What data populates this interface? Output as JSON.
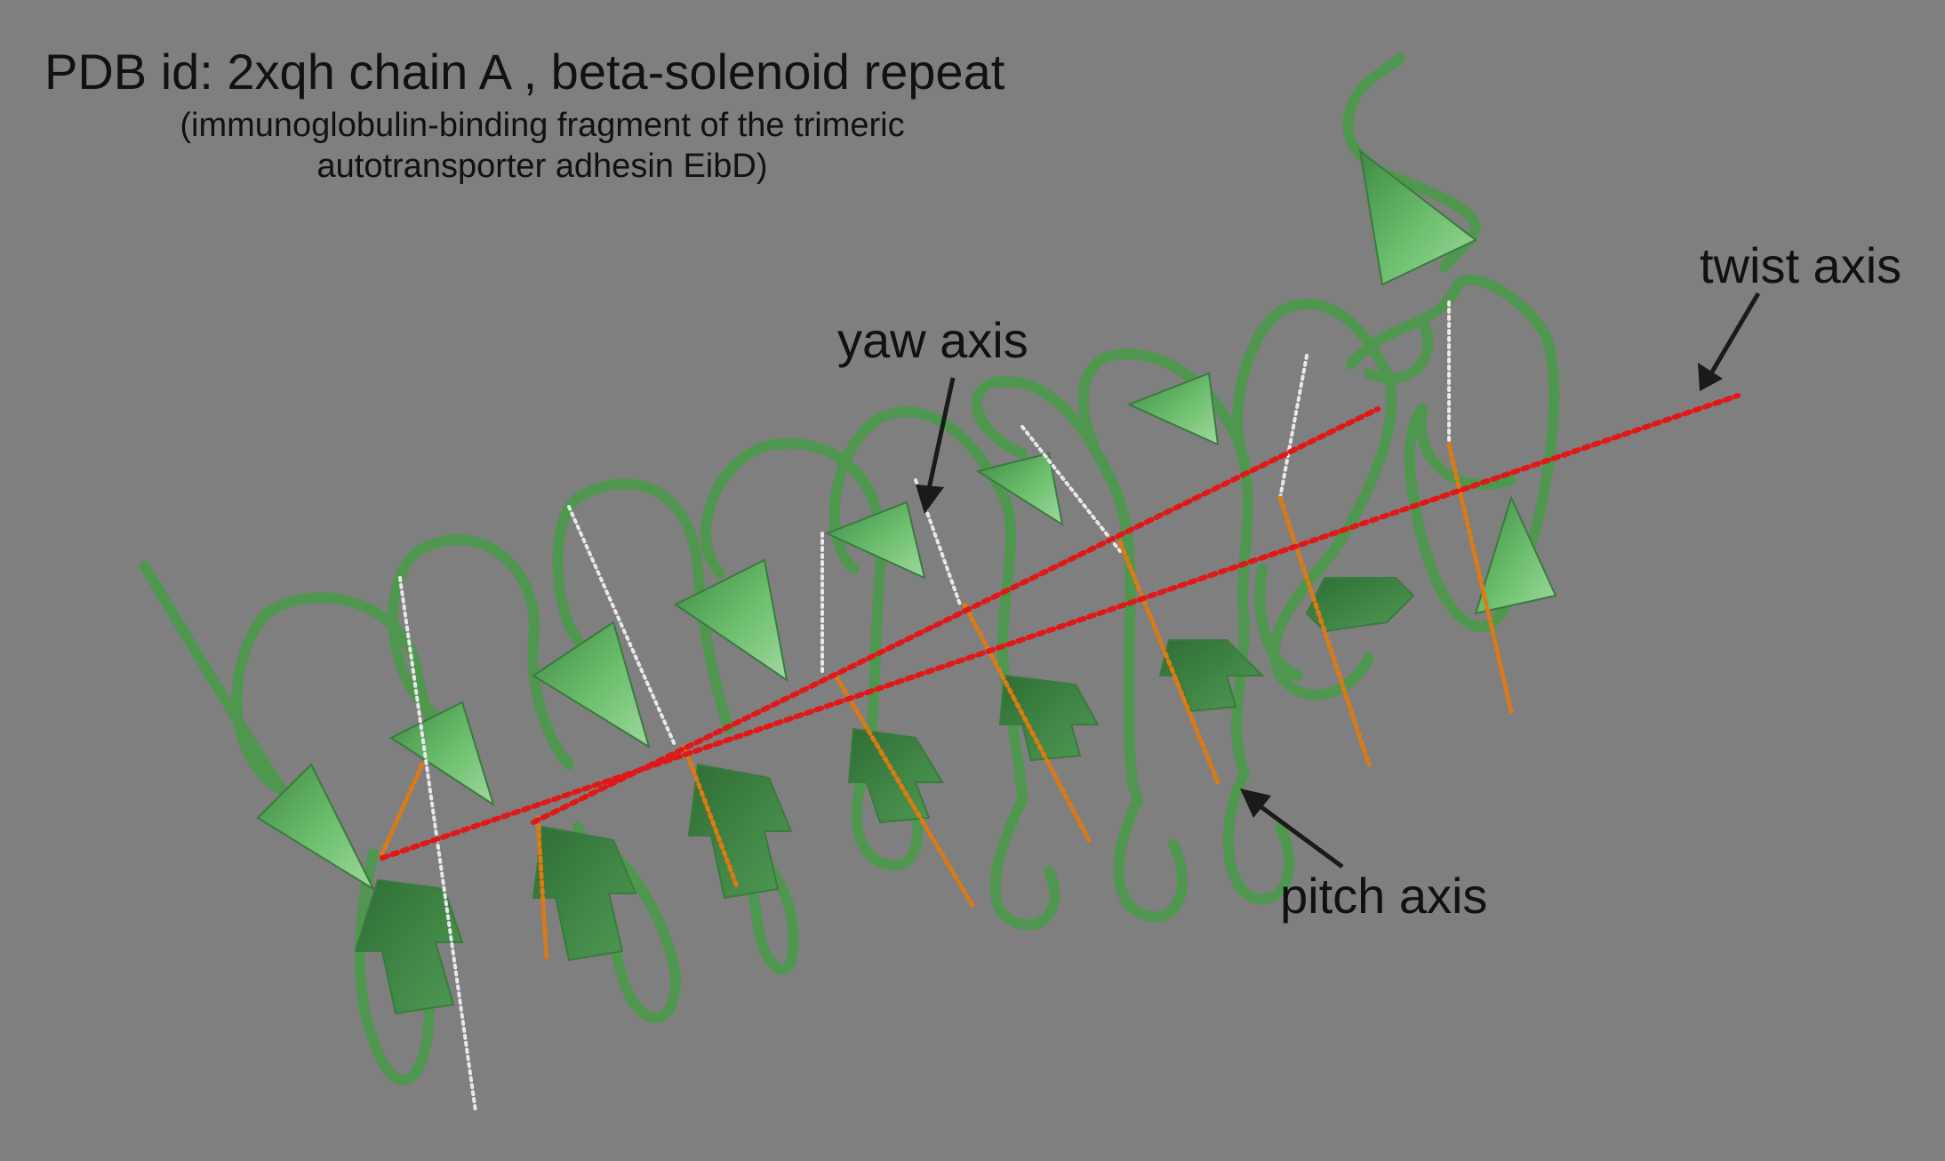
{
  "title": "PDB id: 2xqh chain A , beta-solenoid repeat",
  "subtitle": {
    "line1": "(immunoglobulin-binding fragment of the trimeric",
    "line2": "autotransporter adhesin EibD)"
  },
  "labels": {
    "yaw": "yaw axis",
    "twist": "twist axis",
    "pitch": "pitch axis"
  },
  "colors": {
    "background": "#7f7f7f",
    "protein_ribbon": "#5fa35f",
    "twist_axis": "#e01818",
    "pitch_axis": "#e07a10",
    "yaw_axis": "#e8e8e8",
    "arrow": "#1a1a1a"
  }
}
